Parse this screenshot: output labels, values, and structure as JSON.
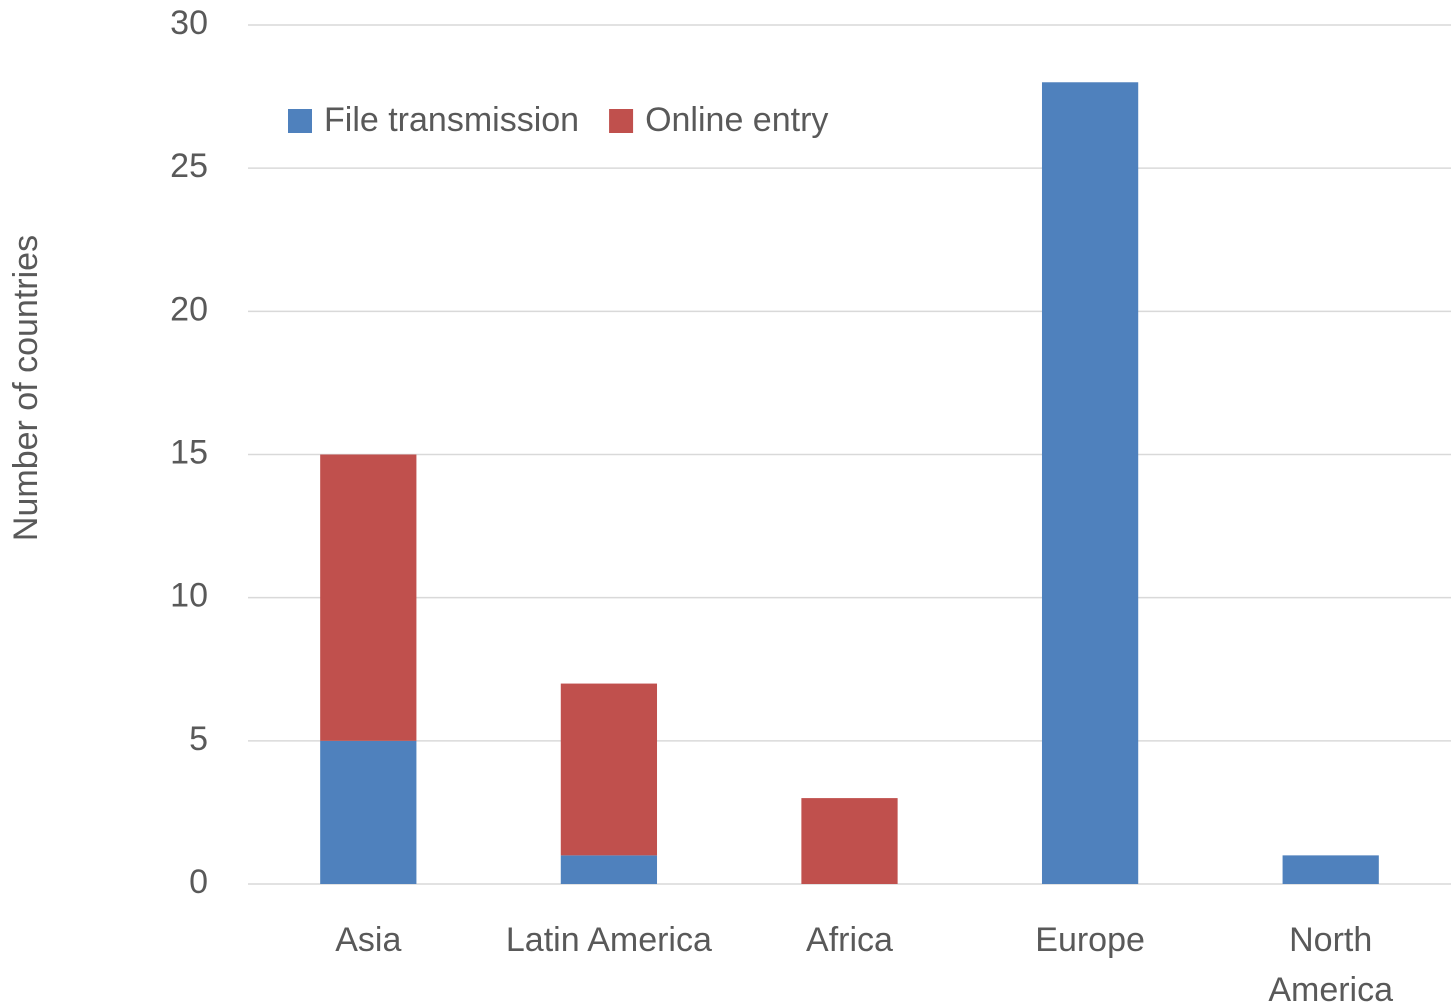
{
  "chart_data": {
    "type": "stacked_bar",
    "categories": [
      "Asia",
      "Latin America",
      "Africa",
      "Europe",
      "North America"
    ],
    "series": [
      {
        "name": "File transmission",
        "color": "#4f81bd",
        "values": [
          5,
          1,
          0,
          28,
          1
        ]
      },
      {
        "name": "Online entry",
        "color": "#c0504d",
        "values": [
          10,
          6,
          3,
          0,
          0
        ]
      }
    ],
    "y_label": "Number of countries",
    "ylim": [
      0,
      30
    ],
    "yticks": [
      0,
      5,
      10,
      15,
      20,
      25,
      30
    ],
    "grid": true,
    "legend": "top-left"
  }
}
